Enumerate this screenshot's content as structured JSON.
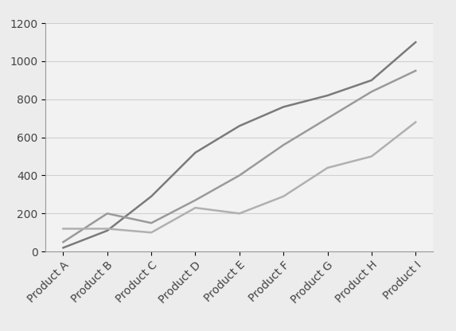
{
  "chart_data": {
    "type": "line",
    "categories": [
      "Product A",
      "Product B",
      "Product C",
      "Product D",
      "Product E",
      "Product F",
      "Product G",
      "Product H",
      "Product I"
    ],
    "series": [
      {
        "color": "#7a7a7a",
        "values": [
          20,
          110,
          290,
          520,
          660,
          760,
          820,
          900,
          1100
        ]
      },
      {
        "color": "#9a9a9a",
        "values": [
          50,
          200,
          150,
          270,
          400,
          560,
          700,
          840,
          950
        ]
      },
      {
        "color": "#b0b0b0",
        "values": [
          120,
          120,
          100,
          230,
          200,
          290,
          440,
          500,
          680
        ]
      }
    ],
    "ylim": [
      0,
      1200
    ],
    "yticks": [
      0,
      200,
      400,
      600,
      800,
      1000,
      1200
    ],
    "grid": true
  }
}
